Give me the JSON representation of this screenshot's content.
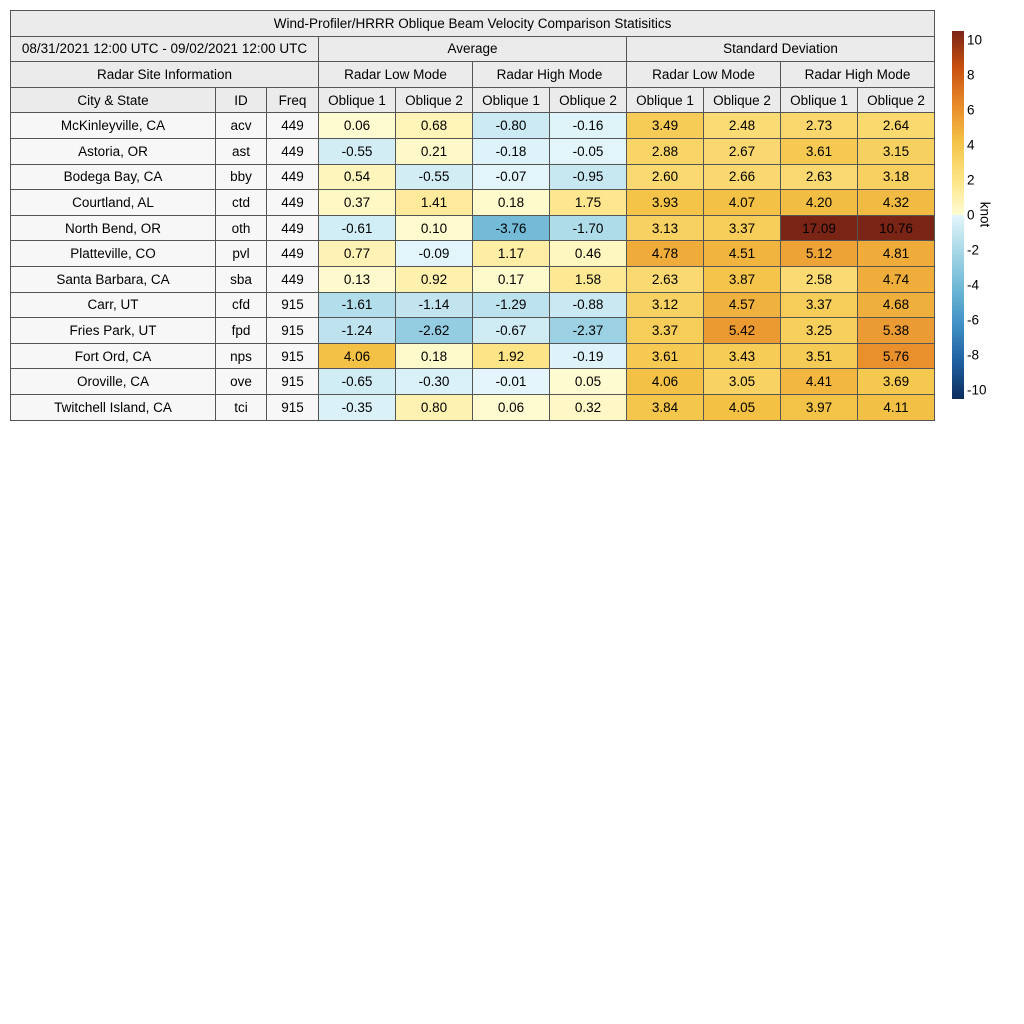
{
  "chart_data": {
    "type": "table",
    "title": "Wind-Profiler/HRRR Oblique Beam Velocity Comparison Statisitics",
    "period": "08/31/2021 12:00 UTC - 09/02/2021 12:00 UTC",
    "groups": [
      "Average",
      "Standard Deviation"
    ],
    "info_header": "Radar Site Information",
    "modes": [
      "Radar Low Mode",
      "Radar High Mode",
      "Radar Low Mode",
      "Radar High Mode"
    ],
    "columns": [
      "City & State",
      "ID",
      "Freq",
      "Oblique 1",
      "Oblique 2",
      "Oblique 1",
      "Oblique 2",
      "Oblique 1",
      "Oblique 2",
      "Oblique 1",
      "Oblique 2"
    ],
    "rows": [
      [
        "McKinleyville, CA",
        "acv",
        "449",
        0.06,
        0.68,
        -0.8,
        -0.16,
        3.49,
        2.48,
        2.73,
        2.64
      ],
      [
        "Astoria, OR",
        "ast",
        "449",
        -0.55,
        0.21,
        -0.18,
        -0.05,
        2.88,
        2.67,
        3.61,
        3.15
      ],
      [
        "Bodega Bay, CA",
        "bby",
        "449",
        0.54,
        -0.55,
        -0.07,
        -0.95,
        2.6,
        2.66,
        2.63,
        3.18
      ],
      [
        "Courtland, AL",
        "ctd",
        "449",
        0.37,
        1.41,
        0.18,
        1.75,
        3.93,
        4.07,
        4.2,
        4.32
      ],
      [
        "North Bend, OR",
        "oth",
        "449",
        -0.61,
        0.1,
        -3.76,
        -1.7,
        3.13,
        3.37,
        17.09,
        10.76
      ],
      [
        "Platteville, CO",
        "pvl",
        "449",
        0.77,
        -0.09,
        1.17,
        0.46,
        4.78,
        4.51,
        5.12,
        4.81
      ],
      [
        "Santa Barbara, CA",
        "sba",
        "449",
        0.13,
        0.92,
        0.17,
        1.58,
        2.63,
        3.87,
        2.58,
        4.74
      ],
      [
        "Carr, UT",
        "cfd",
        "915",
        -1.61,
        -1.14,
        -1.29,
        -0.88,
        3.12,
        4.57,
        3.37,
        4.68
      ],
      [
        "Fries Park, UT",
        "fpd",
        "915",
        -1.24,
        -2.62,
        -0.67,
        -2.37,
        3.37,
        5.42,
        3.25,
        5.38
      ],
      [
        "Fort Ord, CA",
        "nps",
        "915",
        4.06,
        0.18,
        1.92,
        -0.19,
        3.61,
        3.43,
        3.51,
        5.76
      ],
      [
        "Oroville, CA",
        "ove",
        "915",
        -0.65,
        -0.3,
        -0.01,
        0.05,
        4.06,
        3.05,
        4.41,
        3.69
      ],
      [
        "Twitchell Island, CA",
        "tci",
        "915",
        -0.35,
        0.8,
        0.06,
        0.32,
        3.84,
        4.05,
        3.97,
        4.11
      ]
    ],
    "colorbar": {
      "label": "knot",
      "range": [
        -10,
        10
      ],
      "ticks": [
        10,
        8,
        6,
        4,
        2,
        0,
        -2,
        -4,
        -6,
        -8,
        -10
      ],
      "colors": {
        "-10": "#0b2c5c",
        "-8": "#1f5fa0",
        "-6": "#3f8fc4",
        "-4": "#6db7d6",
        "-2": "#a6d7e6",
        "0": "#e4f6fb",
        "0.01": "#fffcd2",
        "2": "#fde383",
        "4": "#f3c346",
        "6": "#e8892a",
        "8": "#c9510f",
        "10": "#7a2416"
      }
    }
  }
}
